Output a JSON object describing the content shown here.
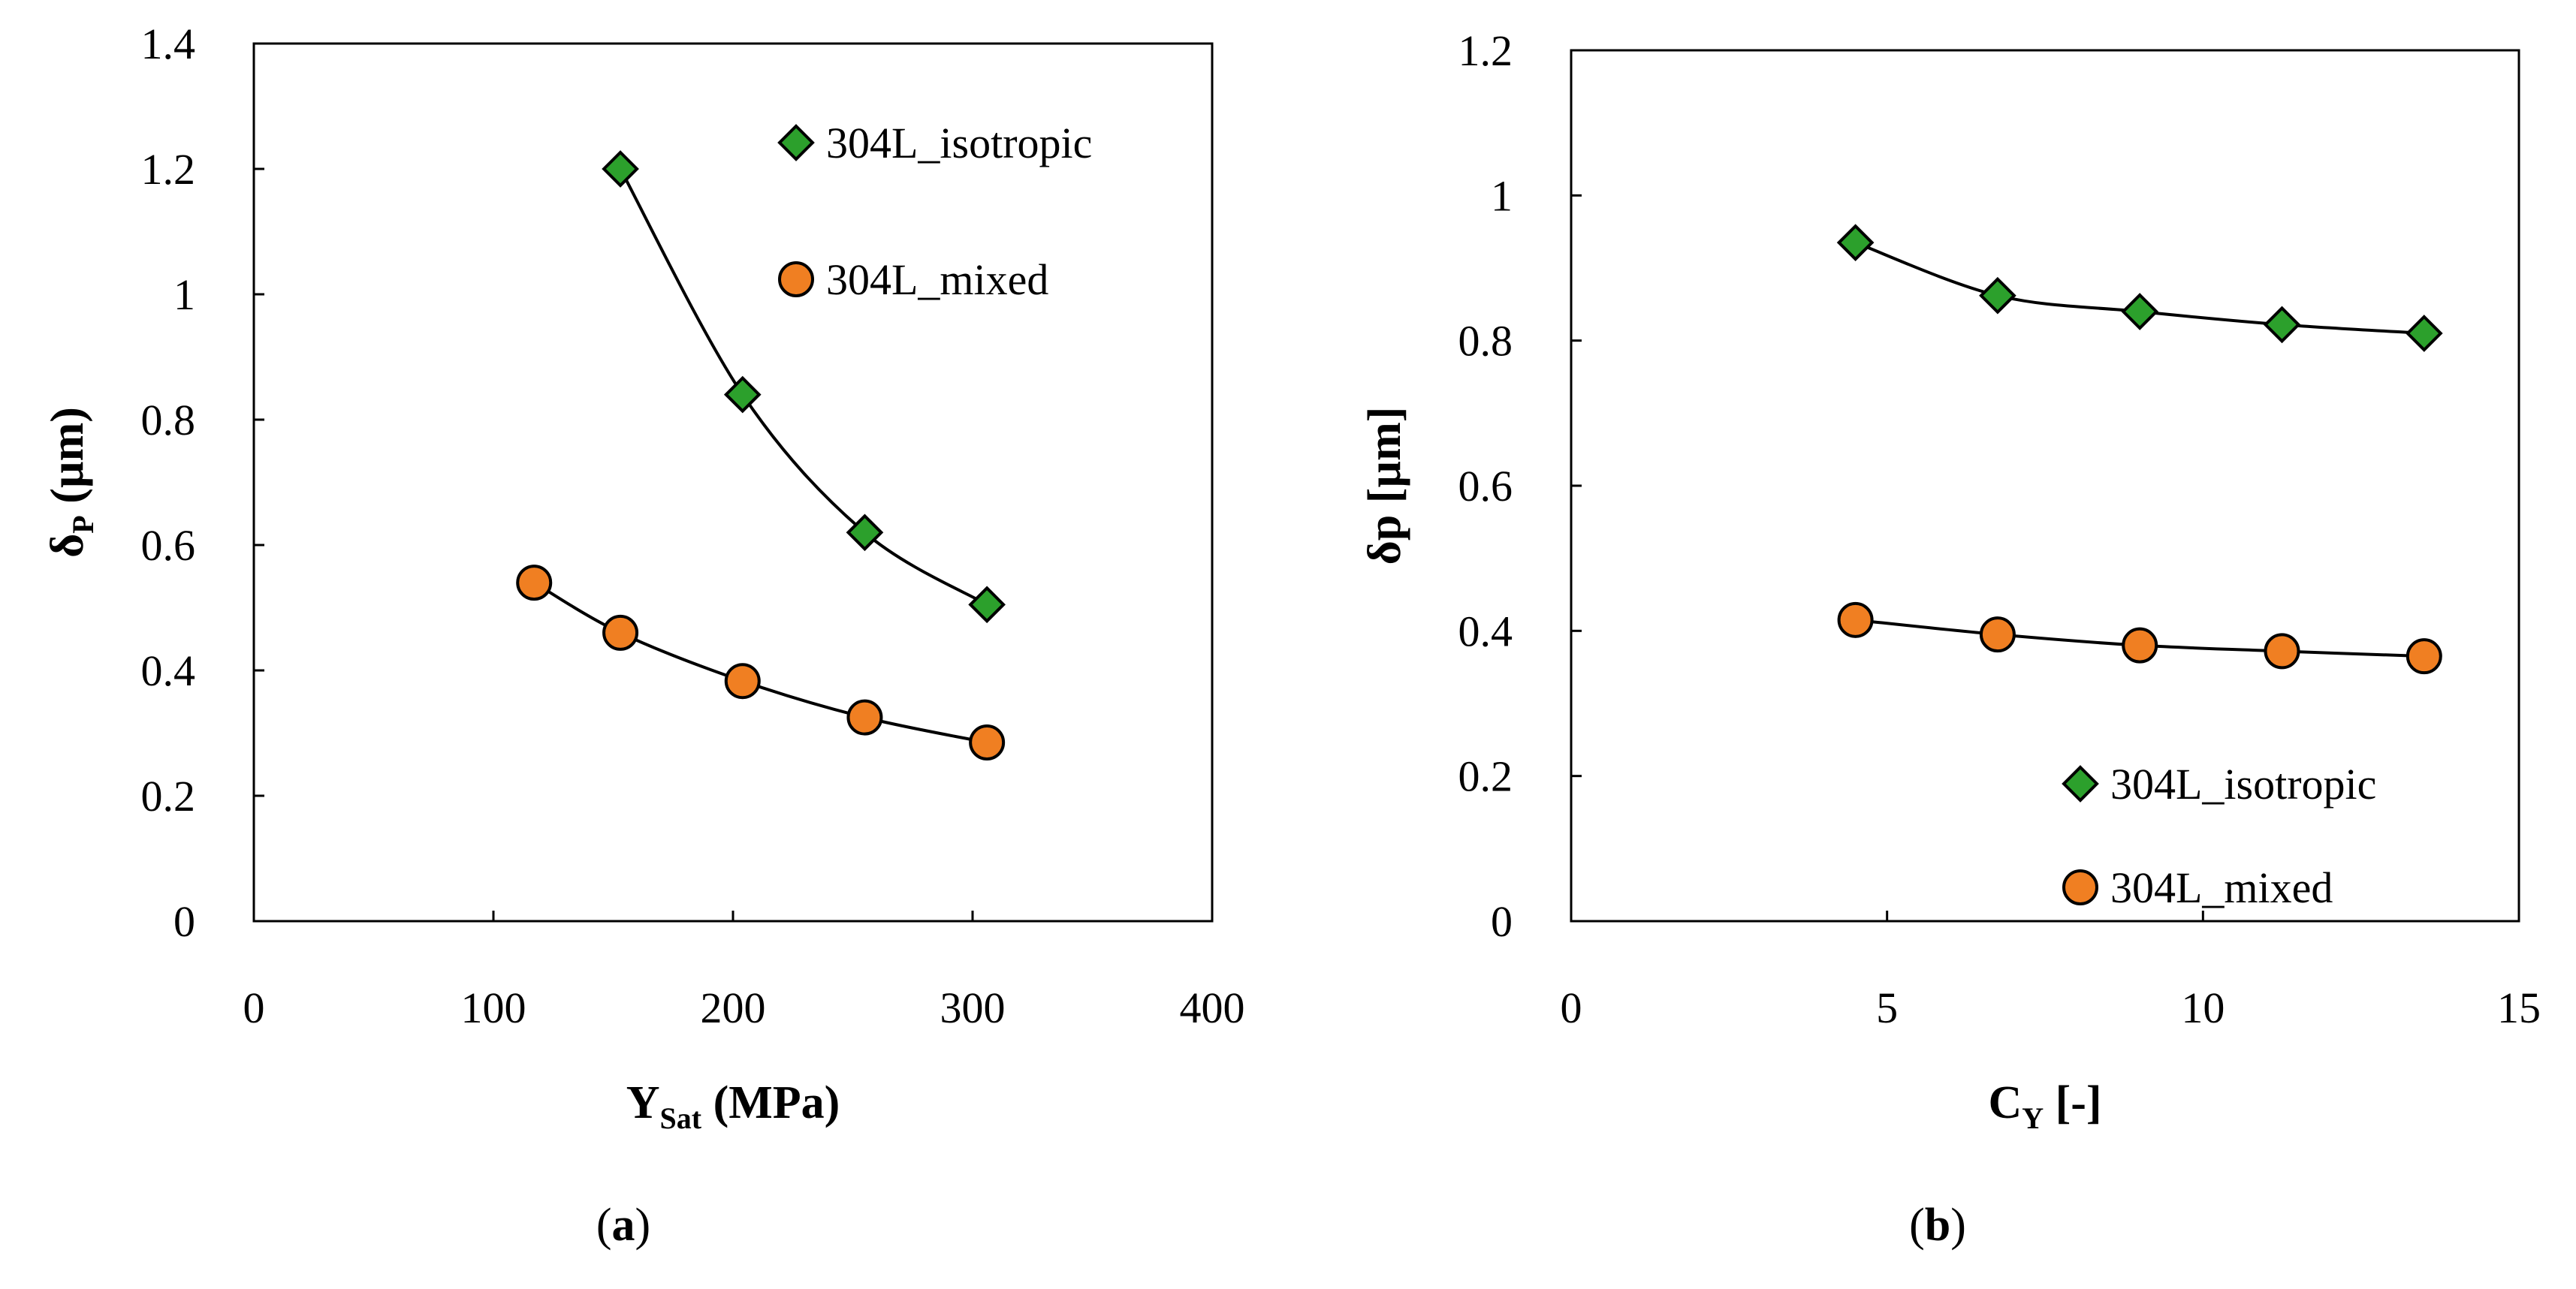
{
  "colors": {
    "isotropic": "#2ca02c",
    "mixed": "#f07f22",
    "stroke": "#000000"
  },
  "chart_data": [
    {
      "type": "scatter",
      "panel_label": "a",
      "xlabel_main": "Y",
      "xlabel_sub": "Sat",
      "xlabel_rest": " (MPa)",
      "ylabel_main": "δ",
      "ylabel_sub": "P",
      "ylabel_rest": " (µm)",
      "xlim": [
        0,
        400
      ],
      "ylim": [
        0,
        1.4
      ],
      "xticks": [
        "0",
        "100",
        "200",
        "300",
        "400"
      ],
      "yticks": [
        "0",
        "0.2",
        "0.4",
        "0.6",
        "0.8",
        "1",
        "1.2",
        "1.4"
      ],
      "legend_position": "top-right",
      "series": [
        {
          "name": "304L_isotropic",
          "marker": "diamond",
          "x": [
            153,
            204,
            255,
            306
          ],
          "y": [
            1.2,
            0.84,
            0.62,
            0.505
          ]
        },
        {
          "name": "304L_mixed",
          "marker": "circle",
          "x": [
            117,
            153,
            204,
            255,
            306
          ],
          "y": [
            0.54,
            0.46,
            0.383,
            0.325,
            0.285
          ]
        }
      ]
    },
    {
      "type": "scatter",
      "panel_label": "b",
      "xlabel_main": "C",
      "xlabel_sub": "Y",
      "xlabel_rest": " [-]",
      "ylabel_main": "δp",
      "ylabel_sub": "",
      "ylabel_rest": " [µm]",
      "xlim": [
        0,
        15
      ],
      "ylim": [
        0,
        1.2
      ],
      "xticks": [
        "0",
        "5",
        "10",
        "15"
      ],
      "yticks": [
        "0",
        "0.2",
        "0.4",
        "0.6",
        "0.8",
        "1",
        "1.2"
      ],
      "legend_position": "bottom-right",
      "series": [
        {
          "name": "304L_isotropic",
          "marker": "diamond",
          "x": [
            4.5,
            6.75,
            9.0,
            11.25,
            13.5
          ],
          "y": [
            0.935,
            0.862,
            0.84,
            0.822,
            0.81
          ]
        },
        {
          "name": "304L_mixed",
          "marker": "circle",
          "x": [
            4.5,
            6.75,
            9.0,
            11.25,
            13.5
          ],
          "y": [
            0.415,
            0.395,
            0.38,
            0.372,
            0.365
          ]
        }
      ]
    }
  ]
}
